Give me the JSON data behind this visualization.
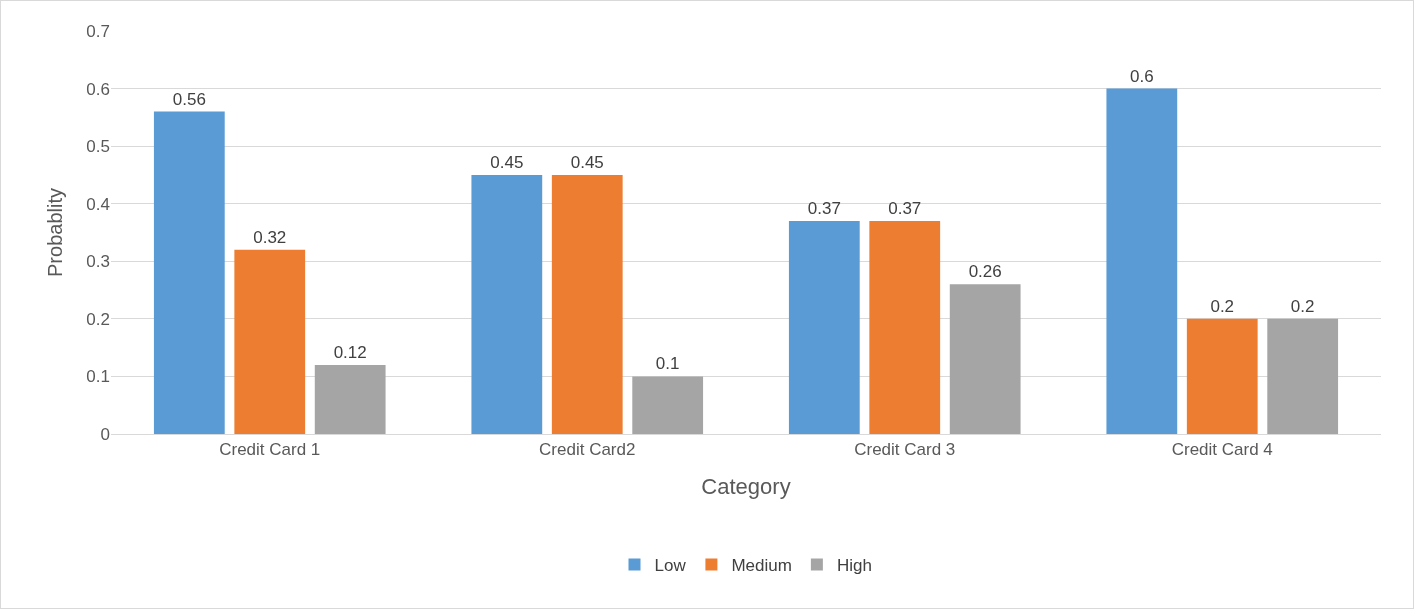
{
  "chart_data": {
    "type": "bar",
    "xlabel": "Category",
    "ylabel": "Probablity",
    "categories": [
      "Credit Card 1",
      "Credit Card2",
      "Credit Card 3",
      "Credit Card 4"
    ],
    "series": [
      {
        "name": "Low",
        "color": "#5b9bd5",
        "values": [
          0.56,
          0.45,
          0.37,
          0.6
        ]
      },
      {
        "name": "Medium",
        "color": "#ed7d31",
        "values": [
          0.32,
          0.45,
          0.37,
          0.2
        ]
      },
      {
        "name": "High",
        "color": "#a5a5a5",
        "values": [
          0.12,
          0.1,
          0.26,
          0.2
        ]
      }
    ],
    "ylim": [
      0,
      0.7
    ],
    "yticks": [
      0,
      0.1,
      0.2,
      0.3,
      0.4,
      0.5,
      0.6,
      0.7
    ],
    "grid": "y",
    "legend": "bottom",
    "data_labels": true
  }
}
